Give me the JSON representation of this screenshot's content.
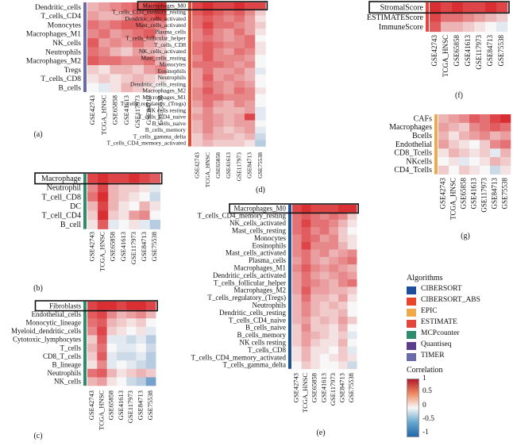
{
  "colors": {
    "low": "#2166ac",
    "mid": "#f7f7f7",
    "high": "#d7191c"
  },
  "legend": {
    "algorithms_title": "Algorithms",
    "algorithms": [
      {
        "label": "CIBERSORT",
        "color": "#1f4e9a"
      },
      {
        "label": "CIBERSORT_ABS",
        "color": "#e8452a"
      },
      {
        "label": "EPIC",
        "color": "#f0a94a"
      },
      {
        "label": "ESTIMATE",
        "color": "#e2463c"
      },
      {
        "label": "MCPcounter",
        "color": "#2e8b6d"
      },
      {
        "label": "Quantiseq",
        "color": "#5a3e8c"
      },
      {
        "label": "TIMER",
        "color": "#6b6bab"
      }
    ],
    "correlation_title": "Correlation",
    "ticks": [
      "1",
      "0.5",
      "0",
      "-0.5",
      "-1"
    ]
  },
  "chart_data": [
    {
      "type": "heatmap",
      "panel": "(a)",
      "algorithm": "TIMER",
      "rows": [
        "Dendritic_cells",
        "T_cells_CD4",
        "Monocytes",
        "Macrophages_M1",
        "NK_cells",
        "Neutrophils",
        "Macrophages_M2",
        "Tregs",
        "T_cells_CD8",
        "B_cells"
      ],
      "columns": [
        "GSE42743",
        "TCGA_HNSC",
        "GSE65858",
        "GSE41613",
        "GSE117973",
        "GSE84713",
        "GSE75538"
      ],
      "values": [
        [
          0.3,
          0.4,
          0.5,
          0.6,
          0.7,
          0.8,
          0.9
        ],
        [
          0.4,
          0.3,
          0.3,
          0.4,
          0.6,
          0.7,
          0.8
        ],
        [
          0.6,
          0.5,
          0.6,
          0.7,
          0.7,
          0.6,
          0.5
        ],
        [
          0.5,
          0.6,
          0.4,
          0.5,
          0.6,
          0.7,
          0.3
        ],
        [
          0.7,
          0.4,
          0.5,
          0.4,
          0.6,
          0.4,
          0.2
        ],
        [
          0.6,
          0.5,
          0.3,
          0.2,
          0.4,
          0.3,
          0.2
        ],
        [
          0.7,
          0.6,
          0.6,
          0.5,
          0.5,
          0.6,
          0.3
        ],
        [
          0.2,
          0.1,
          0.3,
          0.3,
          0.2,
          0.4,
          0.5
        ],
        [
          0.1,
          0.2,
          0.1,
          0.2,
          0.3,
          0.2,
          0.1
        ],
        [
          0.0,
          -0.1,
          0.1,
          0.3,
          0.2,
          0.1,
          0.0
        ]
      ]
    },
    {
      "type": "heatmap",
      "panel": "(b)",
      "algorithm": "MCPcounter",
      "rows": [
        "Macrophage",
        "Neutrophil",
        "T_cell_CD8",
        "DC",
        "T_cell_CD4",
        "B_cell"
      ],
      "columns": [
        "GSE42743",
        "TCGA_HNSC",
        "GSE65858",
        "GSE41613",
        "GSE117973",
        "GSE84713",
        "GSE75538"
      ],
      "highlight_rows": [
        0
      ],
      "values": [
        [
          0.8,
          0.9,
          0.8,
          0.8,
          0.9,
          0.8,
          0.7
        ],
        [
          0.5,
          0.8,
          0.3,
          0.2,
          0.2,
          0.1,
          -0.1
        ],
        [
          0.6,
          0.9,
          0.3,
          0.2,
          0.1,
          0.0,
          -0.2
        ],
        [
          0.3,
          0.8,
          0.3,
          0.1,
          0.0,
          0.3,
          0.1
        ],
        [
          0.2,
          0.9,
          0.2,
          0.1,
          0.4,
          0.5,
          0.0
        ],
        [
          0.1,
          0.7,
          -0.1,
          0.0,
          0.1,
          -0.1,
          -0.3
        ]
      ]
    },
    {
      "type": "heatmap",
      "panel": "(c)",
      "algorithm": "MCPcounter",
      "rows": [
        "Fibroblasts",
        "Endothelial_cells",
        "Monocytic_lineage",
        "Myeloid_dendritic_cells",
        "Cytotoxic_lymphocytes",
        "T_cells",
        "CD8_T_cells",
        "B_lineage",
        "Neutrophils",
        "NK_cells"
      ],
      "columns": [
        "GSE42743",
        "TCGA_HNSC",
        "GSE65858",
        "GSE41613",
        "GSE117973",
        "GSE84713",
        "GSE75538"
      ],
      "highlight_rows": [
        0
      ],
      "values": [
        [
          0.8,
          0.9,
          0.9,
          0.8,
          0.9,
          0.9,
          0.8
        ],
        [
          0.7,
          0.8,
          0.5,
          0.3,
          0.4,
          0.5,
          0.3
        ],
        [
          0.6,
          0.7,
          0.3,
          0.2,
          0.1,
          0.2,
          0.0
        ],
        [
          0.5,
          0.8,
          0.2,
          0.1,
          0.0,
          0.1,
          -0.1
        ],
        [
          0.2,
          0.7,
          -0.1,
          -0.1,
          -0.2,
          -0.1,
          -0.3
        ],
        [
          0.3,
          0.6,
          0.0,
          -0.1,
          -0.1,
          0.0,
          -0.2
        ],
        [
          0.2,
          0.7,
          -0.1,
          -0.2,
          -0.2,
          -0.1,
          -0.3
        ],
        [
          0.1,
          0.5,
          -0.1,
          0.0,
          -0.1,
          -0.2,
          -0.3
        ],
        [
          0.6,
          0.7,
          0.3,
          0.1,
          0.2,
          0.3,
          0.2
        ],
        [
          0.3,
          0.4,
          0.1,
          0.0,
          -0.2,
          -0.3,
          -0.6
        ]
      ]
    },
    {
      "type": "heatmap",
      "panel": "(d)",
      "algorithm": "CIBERSORT_ABS",
      "rows": [
        "Macrophages_M0",
        "T_cells_CD4_memory_resting",
        "Dendritic_cells_activated",
        "Mast_cells_activated",
        "Plasma_cells",
        "T_cells_follicular_helper",
        "T_cells_CD8",
        "NK_cells_activated",
        "Mast_cells_resting",
        "Monocytes",
        "Eosinophils",
        "Neutrophils",
        "Dendritic_cells_resting",
        "Macrophages_M2",
        "Macrophages_M1",
        "T_cells_regulatory_(Tregs)",
        "NK cells resting",
        "T_cells_CD4_naive",
        "B_cells_naive",
        "B_cells_memory",
        "T_cells_gamma_delta",
        "T_cells_CD4_memory_activated"
      ],
      "columns": [
        "GSE42743",
        "TCGA_HNSC",
        "GSE65858",
        "GSE41613",
        "GSE117973",
        "GSE84713",
        "GSE75538"
      ],
      "highlight_rows": [
        0
      ],
      "values": [
        [
          0.8,
          0.9,
          0.8,
          0.8,
          0.9,
          0.8,
          0.8
        ],
        [
          0.7,
          0.8,
          0.7,
          0.6,
          0.7,
          0.5,
          0.2
        ],
        [
          0.6,
          0.7,
          0.6,
          0.5,
          0.6,
          0.4,
          0.1
        ],
        [
          0.6,
          0.8,
          0.6,
          0.6,
          0.5,
          0.4,
          0.2
        ],
        [
          0.5,
          0.7,
          0.5,
          0.4,
          0.6,
          0.4,
          0.1
        ],
        [
          0.5,
          0.6,
          0.5,
          0.4,
          0.5,
          0.6,
          0.0
        ],
        [
          0.6,
          0.7,
          0.6,
          0.5,
          0.5,
          0.6,
          0.1
        ],
        [
          0.6,
          0.7,
          0.5,
          0.4,
          0.6,
          0.5,
          0.1
        ],
        [
          0.5,
          0.7,
          0.5,
          0.5,
          0.5,
          0.4,
          0.0
        ],
        [
          0.6,
          0.6,
          0.6,
          0.5,
          0.4,
          0.5,
          0.0
        ],
        [
          0.4,
          0.6,
          0.4,
          0.4,
          0.5,
          0.3,
          -0.1
        ],
        [
          0.4,
          0.7,
          0.4,
          0.5,
          0.4,
          0.3,
          0.0
        ],
        [
          0.4,
          0.6,
          0.5,
          0.4,
          0.5,
          0.4,
          0.0
        ],
        [
          0.5,
          0.7,
          0.5,
          0.4,
          0.6,
          0.5,
          0.1
        ],
        [
          0.5,
          0.6,
          0.6,
          0.5,
          0.5,
          0.5,
          0.0
        ],
        [
          0.4,
          0.6,
          0.4,
          0.3,
          0.5,
          0.4,
          0.0
        ],
        [
          0.3,
          0.5,
          0.3,
          0.3,
          0.3,
          0.4,
          -0.1
        ],
        [
          0.4,
          0.5,
          0.4,
          0.3,
          0.4,
          0.8,
          -0.1
        ],
        [
          0.3,
          0.5,
          0.4,
          0.3,
          0.4,
          0.4,
          0.0
        ],
        [
          0.3,
          0.5,
          0.3,
          0.2,
          0.3,
          0.4,
          -0.1
        ],
        [
          0.2,
          0.4,
          0.3,
          0.3,
          0.2,
          0.3,
          -0.2
        ],
        [
          0.2,
          0.3,
          0.2,
          0.2,
          0.2,
          0.1,
          -0.3
        ]
      ]
    },
    {
      "type": "heatmap",
      "panel": "(e)",
      "algorithm": "CIBERSORT",
      "rows": [
        "Macrophages_M0",
        "T_cells_CD4_memory_resting",
        "NK_cells_activated",
        "Mast_cells_resting",
        "Monocytes",
        "Eosinophils",
        "Mast_cells_activated",
        "Plasma_cells",
        "Macrophages_M1",
        "Dendritic_cells_activated",
        "T_cells_follicular_helper",
        "Macrophages_M2",
        "T_cells_regulatory_(Tregs)",
        "Neutrophils",
        "Dendritic_cells_resting",
        "T_cells_CD4_naive",
        "B_cells_naive",
        "B_cells_memory",
        "NK cells resting",
        "T_cells_CD8",
        "T_cells_CD4_memory_activated",
        "T_cells_gamma_delta"
      ],
      "columns": [
        "GSE42743",
        "TCGA_HNSC",
        "GSE65858",
        "GSE41613",
        "GSE117973",
        "GSE84713",
        "GSE75538"
      ],
      "highlight_rows": [
        0
      ],
      "values": [
        [
          0.8,
          0.9,
          0.8,
          0.8,
          0.8,
          0.9,
          0.9
        ],
        [
          0.6,
          0.7,
          0.6,
          0.5,
          0.6,
          0.5,
          0.2
        ],
        [
          0.6,
          0.8,
          0.6,
          0.6,
          0.5,
          0.3,
          0.1
        ],
        [
          0.6,
          0.7,
          0.5,
          0.6,
          0.4,
          0.2,
          0.0
        ],
        [
          0.5,
          0.7,
          0.6,
          0.4,
          0.5,
          0.2,
          0.1
        ],
        [
          0.5,
          0.8,
          0.5,
          0.5,
          0.5,
          0.3,
          0.1
        ],
        [
          0.5,
          0.6,
          0.4,
          0.5,
          0.3,
          0.4,
          0.5
        ],
        [
          0.4,
          0.6,
          0.4,
          0.3,
          0.4,
          0.5,
          0.6
        ],
        [
          0.5,
          0.7,
          0.5,
          0.4,
          0.5,
          0.4,
          0.3
        ],
        [
          0.4,
          0.6,
          0.4,
          0.3,
          0.4,
          0.5,
          0.4
        ],
        [
          0.4,
          0.6,
          0.5,
          0.4,
          0.3,
          0.5,
          0.6
        ],
        [
          0.4,
          0.7,
          0.4,
          0.4,
          0.3,
          0.3,
          0.2
        ],
        [
          0.3,
          0.6,
          0.3,
          0.3,
          0.2,
          0.4,
          0.1
        ],
        [
          0.3,
          0.5,
          0.3,
          0.2,
          0.3,
          0.2,
          0.0
        ],
        [
          0.3,
          0.5,
          0.3,
          0.2,
          0.2,
          0.3,
          0.0
        ],
        [
          0.3,
          0.4,
          0.2,
          0.3,
          0.2,
          0.4,
          0.2
        ],
        [
          0.2,
          0.5,
          0.2,
          0.2,
          0.1,
          0.3,
          0.0
        ],
        [
          0.2,
          0.4,
          0.3,
          0.2,
          0.1,
          0.2,
          -0.1
        ],
        [
          0.2,
          0.4,
          0.2,
          0.1,
          0.1,
          0.3,
          0.0
        ],
        [
          0.1,
          0.3,
          0.1,
          0.1,
          0.0,
          0.2,
          -0.1
        ],
        [
          0.1,
          0.3,
          0.1,
          0.0,
          0.1,
          0.2,
          0.1
        ],
        [
          0.0,
          0.2,
          0.1,
          0.0,
          0.0,
          0.1,
          -0.2
        ]
      ]
    },
    {
      "type": "heatmap",
      "panel": "(f)",
      "algorithm": "ESTIMATE",
      "rows": [
        "StromalScore",
        "ESTIMATEScore",
        "ImmuneScore"
      ],
      "columns": [
        "GSE42743",
        "TCGA_HNSC",
        "GSE65858",
        "GSE41613",
        "GSE117973",
        "GSE84713",
        "GSE75538"
      ],
      "highlight_rows": [
        0
      ],
      "values": [
        [
          0.9,
          0.8,
          0.9,
          0.8,
          0.8,
          0.9,
          0.8
        ],
        [
          0.8,
          0.6,
          0.6,
          0.5,
          0.4,
          0.3,
          0.2
        ],
        [
          0.7,
          0.3,
          0.3,
          0.2,
          0.1,
          0.0,
          -0.1
        ]
      ]
    },
    {
      "type": "heatmap",
      "panel": "(g)",
      "algorithm": "EPIC",
      "rows": [
        "CAFs",
        "Macrophages",
        "Bcells",
        "Endothelial",
        "CD8_Tcells",
        "NKcells",
        "CD4_Tcells"
      ],
      "columns": [
        "GSE42743",
        "TCGA_HNSC",
        "GSE65858",
        "GSE41613",
        "GSE117973",
        "GSE84713",
        "GSE75538"
      ],
      "values": [
        [
          0.3,
          0.4,
          0.5,
          0.7,
          0.6,
          0.8,
          0.9
        ],
        [
          0.4,
          0.3,
          0.2,
          0.5,
          0.6,
          0.7,
          0.6
        ],
        [
          0.3,
          0.1,
          0.3,
          0.4,
          0.5,
          0.3,
          0.4
        ],
        [
          0.4,
          0.2,
          0.1,
          0.0,
          0.2,
          0.5,
          0.6
        ],
        [
          0.1,
          0.3,
          0.2,
          0.1,
          0.2,
          -0.1,
          0.3
        ],
        [
          0.0,
          0.1,
          -0.1,
          0.0,
          0.1,
          0.3,
          0.2
        ],
        [
          0.2,
          0.0,
          0.2,
          0.1,
          0.0,
          -0.2,
          0.1
        ]
      ]
    }
  ]
}
